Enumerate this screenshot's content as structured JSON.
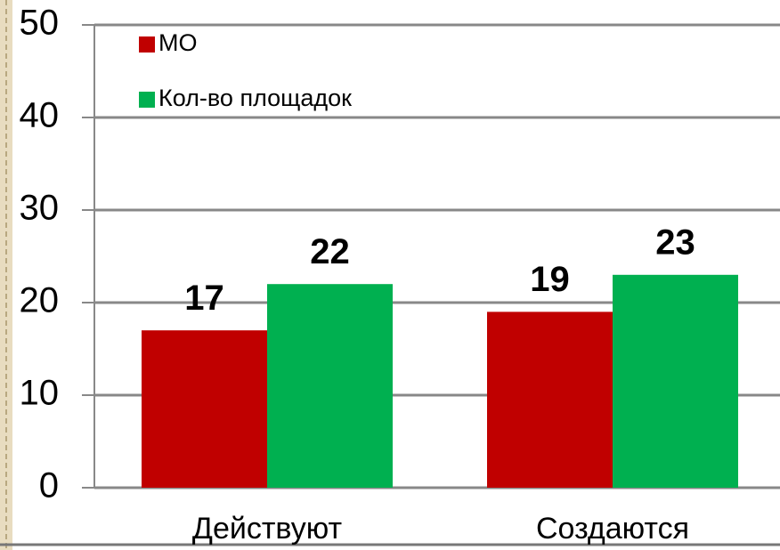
{
  "chart_data": {
    "type": "bar",
    "categories": [
      "Действуют",
      "Создаются"
    ],
    "series": [
      {
        "name": "МО",
        "color": "#c00000",
        "values": [
          17,
          19
        ]
      },
      {
        "name": "Кол-во площадок",
        "color": "#00b050",
        "values": [
          22,
          23
        ]
      }
    ],
    "ylim": [
      0,
      50
    ],
    "yticks": [
      0,
      10,
      20,
      30,
      40,
      50
    ],
    "grid": true,
    "legend": "top-left"
  }
}
